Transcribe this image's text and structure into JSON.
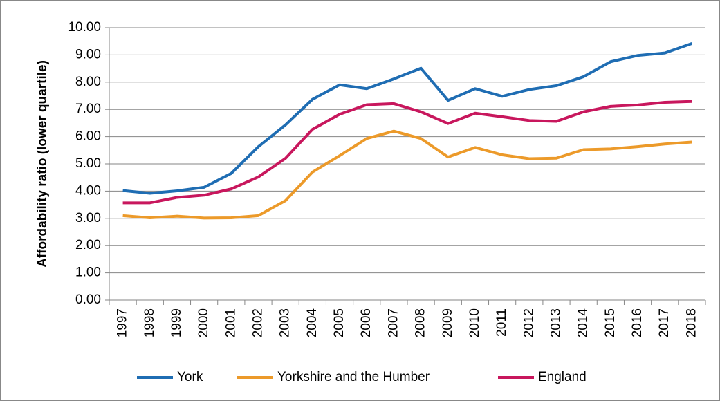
{
  "chart_data": {
    "type": "line",
    "y_label": "Affordability ratio (lower quartile)",
    "categories": [
      "1997",
      "1998",
      "1999",
      "2000",
      "2001",
      "2002",
      "2003",
      "2004",
      "2005",
      "2006",
      "2007",
      "2008",
      "2009",
      "2010",
      "2011",
      "2012",
      "2013",
      "2014",
      "2015",
      "2016",
      "2017",
      "2018"
    ],
    "series": [
      {
        "name": "York",
        "color": "#1f6db3",
        "values": [
          4.02,
          3.92,
          4.01,
          4.14,
          4.65,
          5.63,
          6.43,
          7.37,
          7.9,
          7.76,
          8.12,
          8.51,
          7.33,
          7.76,
          7.48,
          7.73,
          7.87,
          8.2,
          8.75,
          8.98,
          9.07,
          9.42
        ]
      },
      {
        "name": "Yorkshire and the Humber",
        "color": "#ec9a2a",
        "values": [
          3.1,
          3.02,
          3.08,
          3.01,
          3.02,
          3.1,
          3.65,
          4.7,
          5.3,
          5.93,
          6.2,
          5.93,
          5.25,
          5.6,
          5.33,
          5.19,
          5.21,
          5.52,
          5.55,
          5.63,
          5.73,
          5.8
        ]
      },
      {
        "name": "England",
        "color": "#c8175d",
        "values": [
          3.57,
          3.57,
          3.77,
          3.85,
          4.08,
          4.52,
          5.2,
          6.27,
          6.82,
          7.17,
          7.21,
          6.91,
          6.48,
          6.86,
          6.73,
          6.59,
          6.56,
          6.91,
          7.11,
          7.16,
          7.26,
          7.29
        ]
      }
    ],
    "ylim": [
      0,
      10
    ],
    "yticks": [
      {
        "value": 0,
        "label": "0.00"
      },
      {
        "value": 1,
        "label": "1.00"
      },
      {
        "value": 2,
        "label": "2.00"
      },
      {
        "value": 3,
        "label": "3.00"
      },
      {
        "value": 4,
        "label": "4.00"
      },
      {
        "value": 5,
        "label": "5.00"
      },
      {
        "value": 6,
        "label": "6.00"
      },
      {
        "value": 7,
        "label": "7.00"
      },
      {
        "value": 8,
        "label": "8.00"
      },
      {
        "value": 9,
        "label": "9.00"
      },
      {
        "value": 10,
        "label": "10.00"
      }
    ],
    "grid": true,
    "legend": "bottom"
  }
}
